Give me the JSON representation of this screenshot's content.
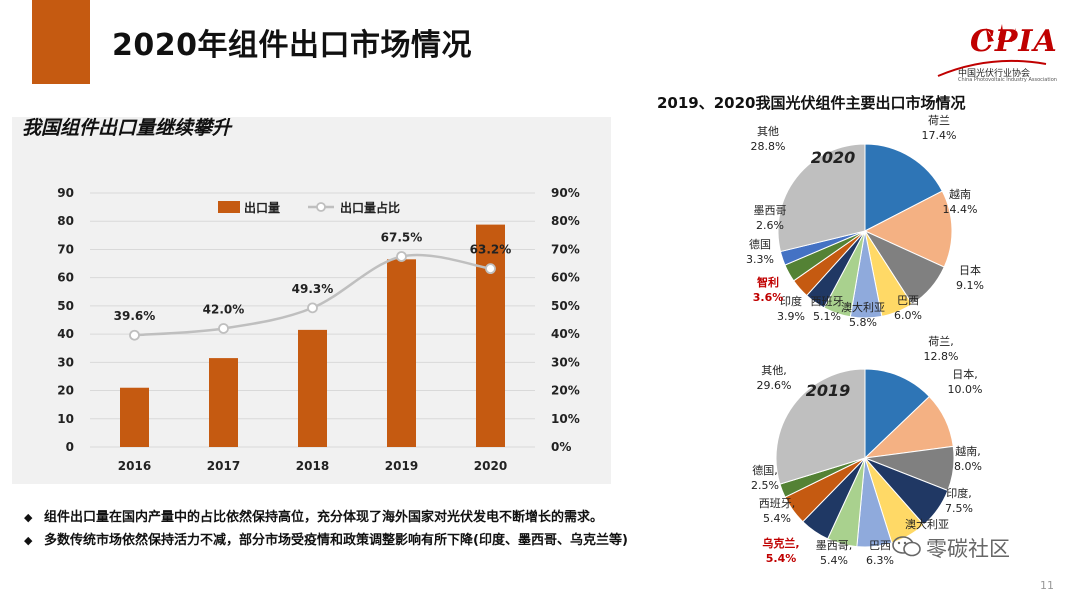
{
  "header": {
    "title": "2020年组件出口市场情况",
    "accent_color": "#c55a11"
  },
  "logo": {
    "brand": "CPIA",
    "org_name": "中国光伏行业协会",
    "org_name_en": "China Photovoltaic Industry Association",
    "brand_color": "#c00000"
  },
  "left": {
    "subtitle": "我国组件出口量继续攀升"
  },
  "right": {
    "title": "2019、2020我国光伏组件主要出口市场情况"
  },
  "bullets": [
    {
      "mark": "◆",
      "text": "组件出口量在国内产量中的占比依然保持高位，充分体现了海外国家对光伏发电不断增长的需求。"
    },
    {
      "mark": "◆",
      "text": "多数传统市场依然保持活力不减，部分市场受疫情和政策调整影响有所下降(印度、墨西哥、乌克兰等)"
    }
  ],
  "watermark": {
    "text": "零碳社区"
  },
  "page_number": "11",
  "chart_data": [
    {
      "type": "bar",
      "categories": [
        "2016",
        "2017",
        "2018",
        "2019",
        "2020"
      ],
      "series": [
        {
          "name": "出口量",
          "type": "bar",
          "axis": "left",
          "values": [
            21,
            31.5,
            41.5,
            66.5,
            78.8
          ],
          "color": "#c55a11"
        },
        {
          "name": "出口量占比",
          "type": "line",
          "axis": "right",
          "values": [
            39.6,
            42.0,
            49.3,
            67.5,
            63.2
          ],
          "labels": [
            "39.6%",
            "42.0%",
            "49.3%",
            "67.5%",
            "63.2%"
          ],
          "color": "#bfbfbf"
        }
      ],
      "y_left": {
        "min": 0,
        "max": 90,
        "ticks": [
          "0",
          "10",
          "20",
          "30",
          "40",
          "50",
          "60",
          "70",
          "80",
          "90"
        ]
      },
      "y_right": {
        "min": 0,
        "max": 90,
        "ticks": [
          "0%",
          "10%",
          "20%",
          "30%",
          "40%",
          "50%",
          "60%",
          "70%",
          "80%",
          "90%"
        ]
      },
      "legend_placement": "top",
      "grid": true
    },
    {
      "type": "pie",
      "center_label": "2020",
      "slices": [
        {
          "name": "荷兰",
          "value": 17.4,
          "label": "17.4%",
          "color": "#2e75b6"
        },
        {
          "name": "越南",
          "value": 14.4,
          "label": "14.4%",
          "color": "#f4b183"
        },
        {
          "name": "日本",
          "value": 9.1,
          "label": "9.1%",
          "color": "#808080"
        },
        {
          "name": "巴西",
          "value": 6.0,
          "label": "6.0%",
          "color": "#ffd966"
        },
        {
          "name": "澳大利亚",
          "value": 5.8,
          "label": "5.8%",
          "color": "#8faadc"
        },
        {
          "name": "西班牙",
          "value": 5.1,
          "label": "5.1%",
          "color": "#a9d18e"
        },
        {
          "name": "印度",
          "value": 3.9,
          "label": "3.9%",
          "color": "#203864"
        },
        {
          "name": "智利",
          "value": 3.6,
          "label": "3.6%",
          "color": "#c55a11",
          "highlight": true
        },
        {
          "name": "德国",
          "value": 3.3,
          "label": "3.3%",
          "color": "#548235"
        },
        {
          "name": "墨西哥",
          "value": 2.6,
          "label": "2.6%",
          "color": "#4472c4"
        },
        {
          "name": "其他",
          "value": 28.8,
          "label": "28.8%",
          "color": "#bfbfbf"
        }
      ]
    },
    {
      "type": "pie",
      "center_label": "2019",
      "slices": [
        {
          "name": "荷兰,",
          "value": 12.8,
          "label": "12.8%",
          "color": "#2e75b6"
        },
        {
          "name": "日本,",
          "value": 10.0,
          "label": "10.0%",
          "color": "#f4b183"
        },
        {
          "name": "越南,",
          "value": 8.0,
          "label": "8.0%",
          "color": "#808080"
        },
        {
          "name": "印度,",
          "value": 7.5,
          "label": "7.5%",
          "color": "#203864"
        },
        {
          "name": "澳大利亚",
          "value": 6.6,
          "label": "",
          "color": "#ffd966"
        },
        {
          "name": "巴西",
          "value": 6.3,
          "label": "6.3%",
          "color": "#8faadc"
        },
        {
          "name": "墨西哥,",
          "value": 5.4,
          "label": "5.4%",
          "color": "#a9d18e"
        },
        {
          "name": "乌克兰,",
          "value": 5.4,
          "label": "5.4%",
          "color": "#1f3864",
          "highlight": true
        },
        {
          "name": "西班牙,",
          "value": 5.4,
          "label": "5.4%",
          "color": "#c55a11"
        },
        {
          "name": "德国,",
          "value": 2.5,
          "label": "2.5%",
          "color": "#548235"
        },
        {
          "name": "其他,",
          "value": 29.6,
          "label": "29.6%",
          "color": "#bfbfbf"
        }
      ]
    }
  ]
}
